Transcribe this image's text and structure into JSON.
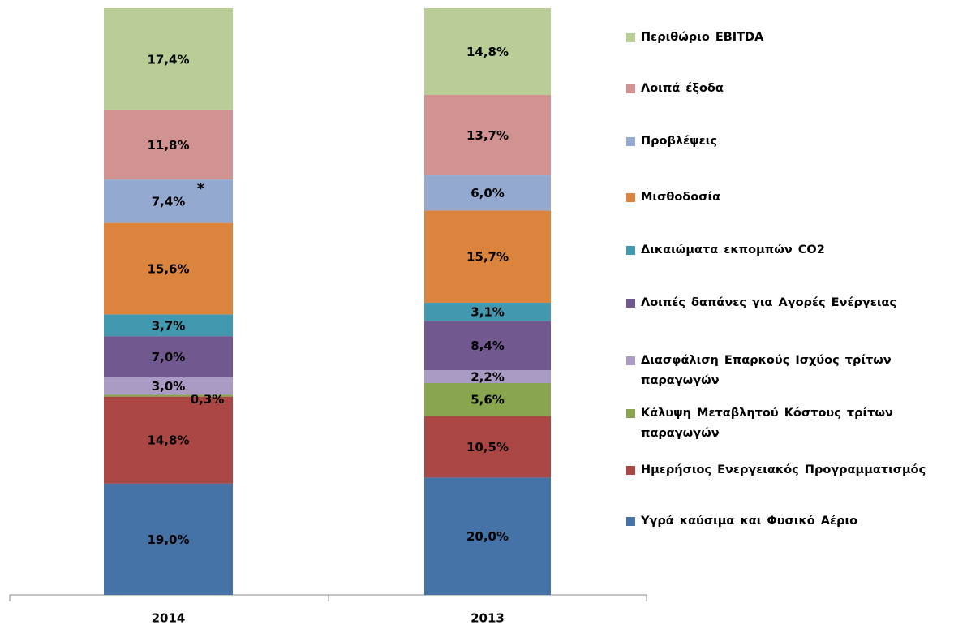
{
  "chart_data": {
    "type": "stacked_bar",
    "categories": [
      "2014",
      "2013"
    ],
    "ylim": [
      0,
      100
    ],
    "annotation": "*",
    "series": [
      {
        "name": "Υγρά καύσιμα και Φυσικό Αέριο",
        "color": "#4572a7",
        "values": [
          19.0,
          20.0
        ],
        "value_labels": [
          "19,0%",
          "20,0%"
        ]
      },
      {
        "name": "Ημερήσιος Ενεργειακός Προγραμματισμός",
        "color": "#aa4643",
        "values": [
          14.8,
          10.5
        ],
        "value_labels": [
          "14,8%",
          "10,5%"
        ]
      },
      {
        "name": "Κάλυψη Μεταβλητού Κόστους τρίτων παραγωγών",
        "color": "#89a54e",
        "values": [
          0.3,
          5.6
        ],
        "value_labels": [
          "0,3%",
          "5,6%"
        ]
      },
      {
        "name": "Διασφάλιση Επαρκούς Ισχύος τρίτων παραγωγών",
        "color": "#aa9bc4",
        "values": [
          3.0,
          2.2
        ],
        "value_labels": [
          "3,0%",
          "2,2%"
        ]
      },
      {
        "name": "Λοιπές δαπάνες για Αγορές Ενέργειας",
        "color": "#71588f",
        "values": [
          7.0,
          8.4
        ],
        "value_labels": [
          "7,0%",
          "8,4%"
        ]
      },
      {
        "name": "Δικαιώματα εκπομπών CO2",
        "color": "#4198af",
        "values": [
          3.7,
          3.1
        ],
        "value_labels": [
          "3,7%",
          "3,1%"
        ]
      },
      {
        "name": "Μισθοδοσία",
        "color": "#db843d",
        "values": [
          15.6,
          15.7
        ],
        "value_labels": [
          "15,6%",
          "15,7%"
        ]
      },
      {
        "name": "Προβλέψεις",
        "color": "#93a9cf",
        "values": [
          7.4,
          6.0
        ],
        "value_labels": [
          "7,4%",
          "6,0%"
        ]
      },
      {
        "name": "Λοιπά έξοδα",
        "color": "#d19392",
        "values": [
          11.8,
          13.7
        ],
        "value_labels": [
          "11,8%",
          "13,7%"
        ]
      },
      {
        "name": "Περιθώριο EBITDA",
        "color": "#b9cd96",
        "values": [
          17.4,
          14.8
        ],
        "value_labels": [
          "17,4%",
          "14,8%"
        ]
      }
    ]
  }
}
